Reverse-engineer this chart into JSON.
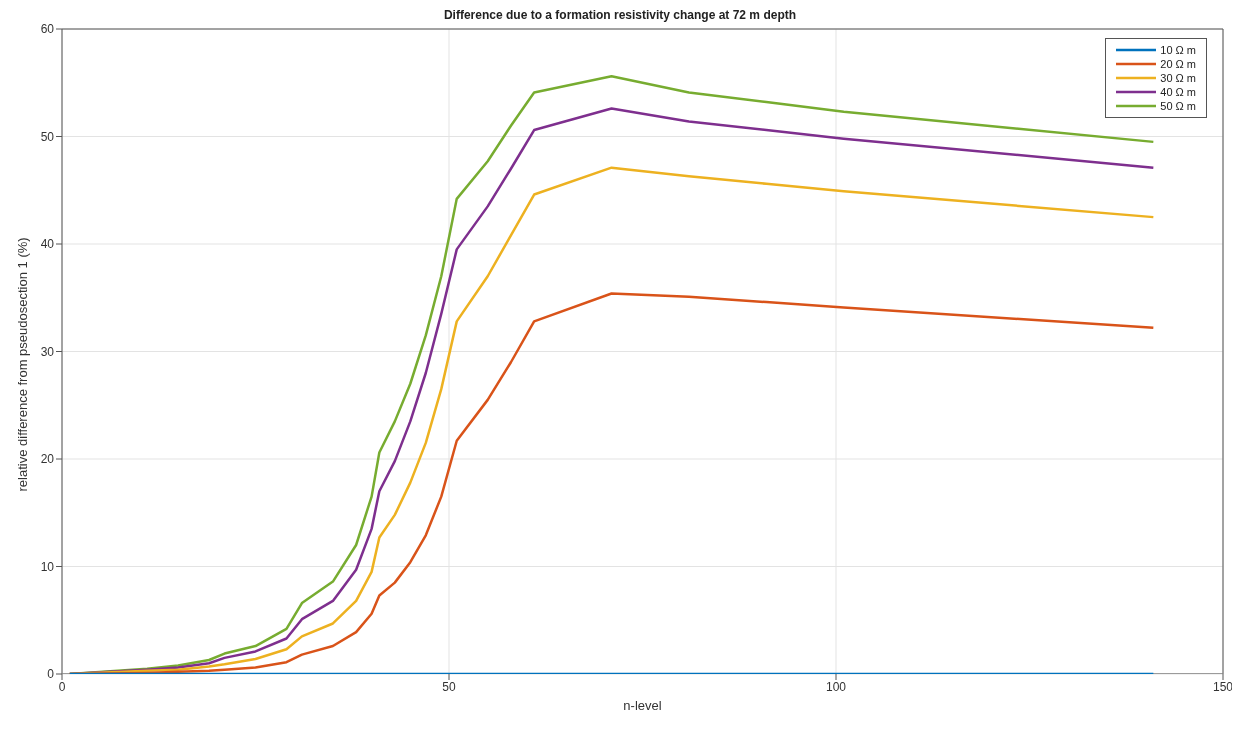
{
  "chart_data": {
    "type": "line",
    "title": "Difference due to a formation resistivity change at 72 m depth",
    "xlabel": "n-level",
    "ylabel": "relative difference from pseudosection 1 (%)",
    "x": [
      1,
      11,
      15,
      19,
      21,
      25,
      29,
      31,
      35,
      38,
      40,
      41,
      43,
      45,
      47,
      49,
      51,
      55,
      58,
      61,
      71,
      81,
      91,
      101,
      141
    ],
    "series": [
      {
        "name": "10 Ω m",
        "color": "#0072bd",
        "values": [
          0,
          0,
          0,
          0,
          0,
          0,
          0,
          0,
          0,
          0,
          0,
          0,
          0,
          0,
          0,
          0,
          0,
          0,
          0,
          0,
          0,
          0,
          0,
          0,
          0
        ]
      },
      {
        "name": "20 Ω m",
        "color": "#d95319",
        "values": [
          0,
          0.1,
          0.2,
          0.3,
          0.4,
          0.6,
          1.1,
          1.8,
          2.6,
          3.9,
          5.6,
          7.3,
          8.5,
          10.4,
          12.9,
          16.5,
          21.7,
          25.5,
          29,
          32.8,
          35.4,
          35.1,
          34.6,
          34.1,
          32.2
        ]
      },
      {
        "name": "30 Ω m",
        "color": "#edb120",
        "values": [
          0,
          0.3,
          0.4,
          0.7,
          0.9,
          1.4,
          2.3,
          3.5,
          4.7,
          6.8,
          9.5,
          12.7,
          14.8,
          17.8,
          21.5,
          26.5,
          32.8,
          37,
          40.8,
          44.6,
          47.1,
          46.3,
          45.6,
          44.9,
          42.5
        ]
      },
      {
        "name": "40 Ω m",
        "color": "#7e2f8e",
        "values": [
          0,
          0.4,
          0.6,
          1,
          1.5,
          2.1,
          3.3,
          5.1,
          6.8,
          9.7,
          13.5,
          17,
          19.8,
          23.5,
          28,
          33.5,
          39.5,
          43.5,
          47,
          50.6,
          52.6,
          51.4,
          50.6,
          49.8,
          47.1
        ]
      },
      {
        "name": "50 Ω m",
        "color": "#77ac30",
        "values": [
          0,
          0.5,
          0.8,
          1.3,
          1.9,
          2.6,
          4.2,
          6.6,
          8.6,
          12,
          16.5,
          20.6,
          23.5,
          27,
          31.5,
          37,
          44.2,
          47.7,
          51,
          54.1,
          55.6,
          54.1,
          53.2,
          52.3,
          49.5
        ]
      }
    ],
    "xlim": [
      0,
      150
    ],
    "xticks": [
      0,
      50,
      100,
      150
    ],
    "ylim": [
      0,
      60
    ],
    "yticks": [
      0,
      10,
      20,
      30,
      40,
      50,
      60
    ],
    "grid": true,
    "legend": "top right",
    "marker": "none",
    "line_style": "solid"
  }
}
